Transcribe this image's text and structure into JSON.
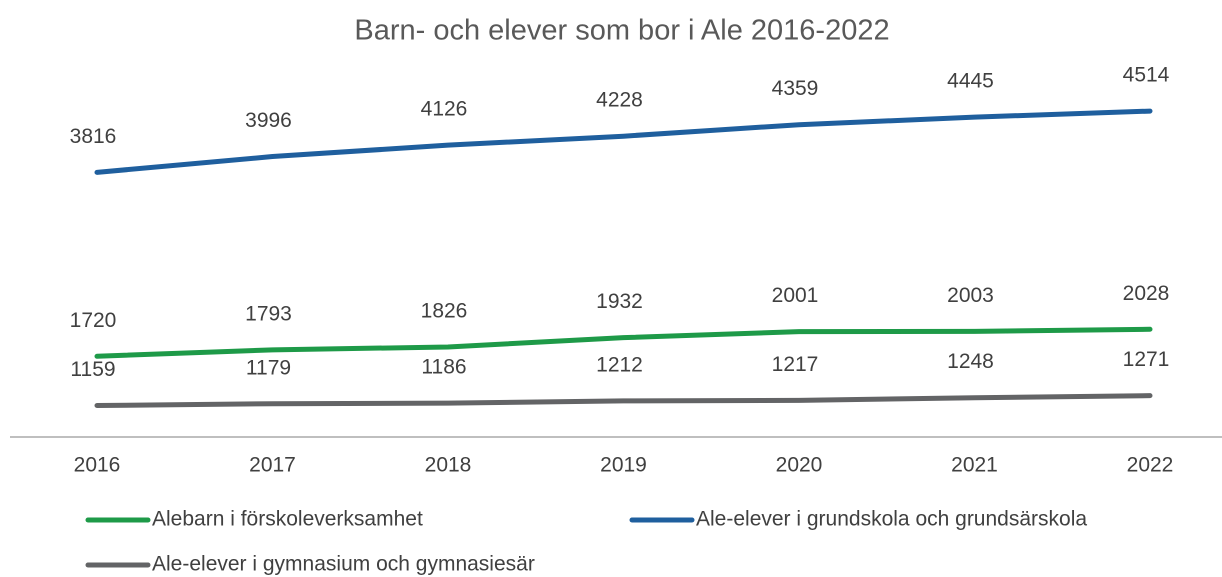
{
  "chart_data": {
    "type": "line",
    "title": "Barn- och elever som bor i Ale 2016-2022",
    "categories": [
      "2016",
      "2017",
      "2018",
      "2019",
      "2020",
      "2021",
      "2022"
    ],
    "series": [
      {
        "name": "Alebarn i förskoleverksamhet",
        "color": "#1e9a48",
        "values": [
          1720,
          1793,
          1826,
          1932,
          2001,
          2003,
          2028
        ]
      },
      {
        "name": "Ale-elever i grundskola och grundsärskola",
        "color": "#1f5f9e",
        "values": [
          3816,
          3996,
          4126,
          4228,
          4359,
          4445,
          4514
        ]
      },
      {
        "name": "Ale-elever i gymnasium och gymnasiesär",
        "color": "#636466",
        "values": [
          1159,
          1179,
          1186,
          1212,
          1217,
          1248,
          1271
        ]
      }
    ],
    "ylim": [
      800,
      4800
    ]
  }
}
